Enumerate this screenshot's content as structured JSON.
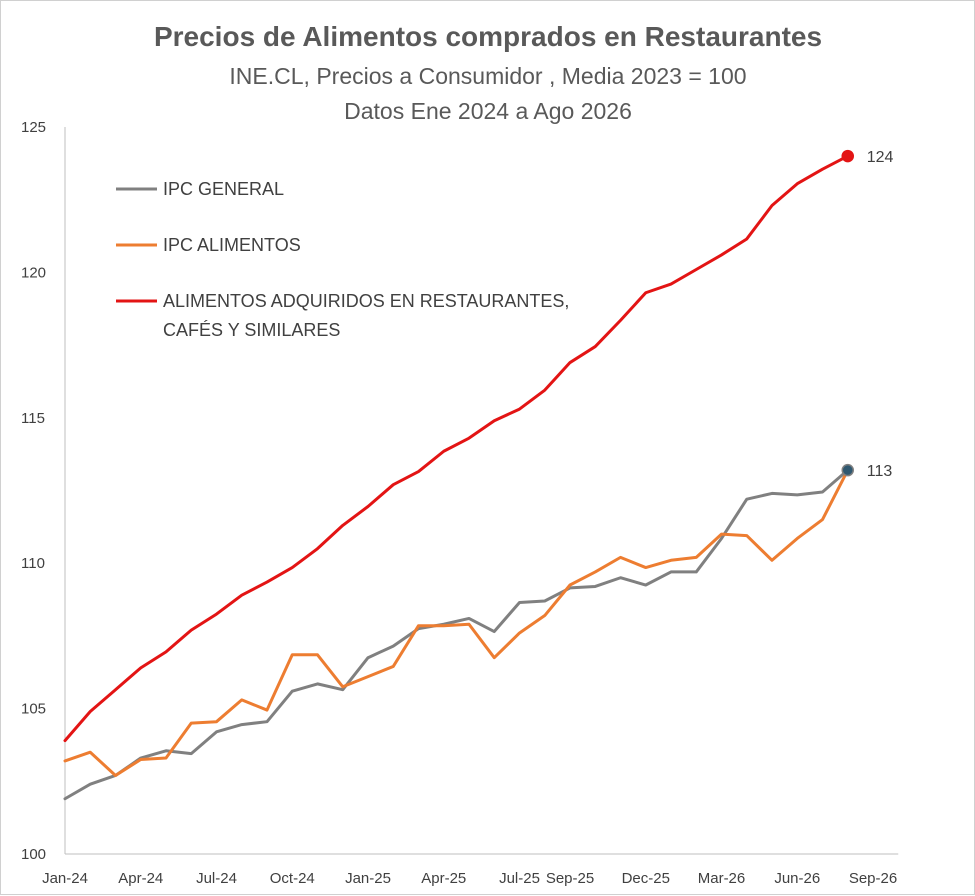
{
  "chart_data": {
    "type": "line",
    "title": "Precios de Alimentos comprados en Restaurantes",
    "subtitle_lines": [
      "INE.CL, Precios a Consumidor , Media 2023 = 100",
      "Datos Ene 2024 a Ago 2026"
    ],
    "xlabel": "",
    "ylabel": "",
    "ylim": [
      100,
      125
    ],
    "yticks": [
      "100",
      "105",
      "110",
      "115",
      "120",
      "125"
    ],
    "xticks": [
      "Jan-24",
      "Apr-24",
      "Jul-24",
      "Oct-24",
      "Jan-25",
      "Apr-25",
      "Jul-25",
      "Sep-25",
      "Dec-25",
      "Mar-26",
      "Jun-26",
      "Sep-26"
    ],
    "xtick_month_index": [
      0,
      3,
      6,
      9,
      12,
      15,
      18,
      20,
      23,
      26,
      29,
      32
    ],
    "x": [
      "2024-01",
      "2024-02",
      "2024-03",
      "2024-04",
      "2024-05",
      "2024-06",
      "2024-07",
      "2024-08",
      "2024-09",
      "2024-10",
      "2024-11",
      "2024-12",
      "2025-01",
      "2025-02",
      "2025-03",
      "2025-04",
      "2025-05",
      "2025-06",
      "2025-07",
      "2025-08",
      "2025-09",
      "2025-10",
      "2025-11",
      "2025-12",
      "2026-01",
      "2026-02",
      "2026-03",
      "2026-04",
      "2026-05",
      "2026-06",
      "2026-07",
      "2026-08"
    ],
    "grid": false,
    "legend_position": "top-left",
    "series": [
      {
        "name": "IPC GENERAL",
        "color": "#808080",
        "values": [
          101.9,
          102.4,
          102.7,
          103.3,
          103.55,
          103.45,
          104.2,
          104.45,
          104.55,
          105.6,
          105.85,
          105.65,
          106.75,
          107.15,
          107.75,
          107.9,
          108.1,
          107.65,
          108.65,
          108.7,
          109.15,
          109.2,
          109.5,
          109.25,
          109.7,
          109.7,
          110.85,
          112.2,
          112.4,
          112.35,
          112.45,
          113.2
        ]
      },
      {
        "name": "IPC ALIMENTOS",
        "color": "#ED7D31",
        "values": [
          103.2,
          103.5,
          102.7,
          103.25,
          103.3,
          104.5,
          104.55,
          105.3,
          104.95,
          106.85,
          106.85,
          105.75,
          106.1,
          106.45,
          107.85,
          107.85,
          107.9,
          106.75,
          107.6,
          108.2,
          109.25,
          109.7,
          110.2,
          109.85,
          110.1,
          110.2,
          111.0,
          110.95,
          110.1,
          110.85,
          111.5,
          113.2
        ]
      },
      {
        "name": "ALIMENTOS ADQUIRIDOS EN RESTAURANTES, CAFÉS Y SIMILARES",
        "legend_lines": [
          "ALIMENTOS ADQUIRIDOS EN RESTAURANTES,",
          "CAFÉS Y SIMILARES"
        ],
        "color": "#E31414",
        "values": [
          103.9,
          104.9,
          105.65,
          106.4,
          106.95,
          107.7,
          108.25,
          108.9,
          109.35,
          109.85,
          110.5,
          111.3,
          111.95,
          112.7,
          113.15,
          113.85,
          114.3,
          114.9,
          115.3,
          115.95,
          116.9,
          117.45,
          118.35,
          119.3,
          119.6,
          120.1,
          120.6,
          121.15,
          122.3,
          123.05,
          123.55,
          124.0
        ]
      }
    ],
    "end_labels": [
      {
        "series": 2,
        "text": "124",
        "marker_color": "#E31414"
      },
      {
        "series": 0,
        "text": "113",
        "marker_color": "#2F5870"
      }
    ]
  }
}
